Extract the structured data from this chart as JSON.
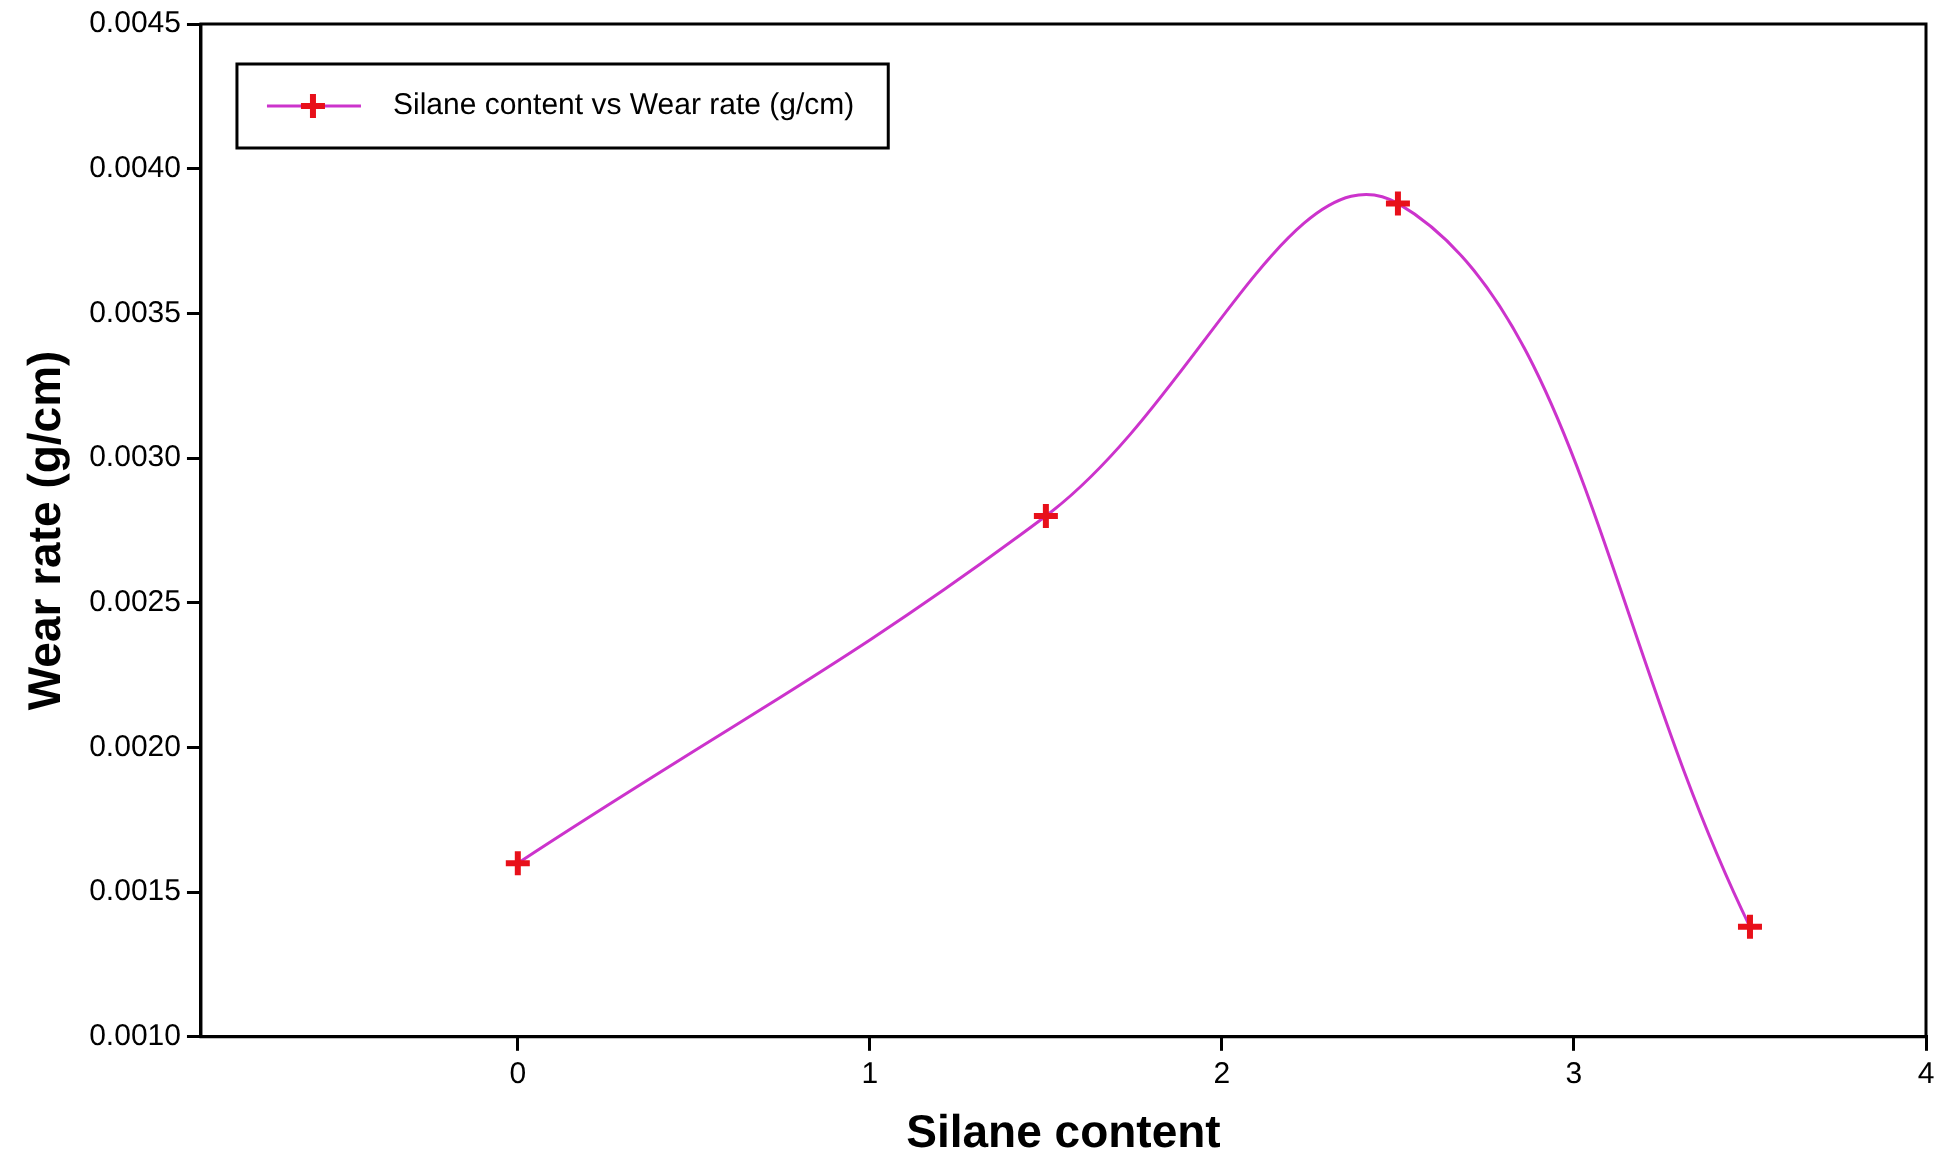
{
  "chart_data": {
    "type": "line",
    "xlabel": "Silane content",
    "ylabel": "Wear rate (g/cm)",
    "x": [
      0,
      1.5,
      2.5,
      3.5
    ],
    "series": [
      {
        "name": "Silane content vs Wear rate (g/cm)",
        "color": "#cc33cc",
        "values": [
          0.0016,
          0.0028,
          0.00388,
          0.00138
        ]
      }
    ],
    "xlim": [
      -0.9,
      4
    ],
    "xticks": [
      0,
      1,
      2,
      3,
      4
    ],
    "ylim": [
      0.001,
      0.0045
    ],
    "yticks": [
      {
        "value": 0.001,
        "label": "0.0010"
      },
      {
        "value": 0.0015,
        "label": "0.0015"
      },
      {
        "value": 0.002,
        "label": "0.0020"
      },
      {
        "value": 0.0025,
        "label": "0.0025"
      },
      {
        "value": 0.003,
        "label": "0.0030"
      },
      {
        "value": 0.0035,
        "label": "0.0035"
      },
      {
        "value": 0.004,
        "label": "0.0040"
      },
      {
        "value": 0.0045,
        "label": "0.0045"
      }
    ],
    "grid": false,
    "legend": "top left",
    "marker": "cross",
    "line_style": "solid"
  }
}
